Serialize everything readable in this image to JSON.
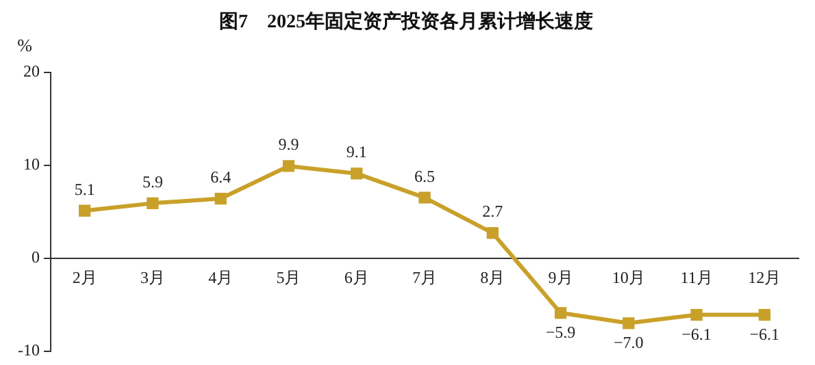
{
  "chart_data": {
    "type": "line",
    "title": "图7　2025年固定资产投资各月累计增长速度",
    "ylabel": "%",
    "categories": [
      "2月",
      "3月",
      "4月",
      "5月",
      "6月",
      "7月",
      "8月",
      "9月",
      "10月",
      "11月",
      "12月"
    ],
    "series": [
      {
        "color": "#c9a12a",
        "values": [
          5.1,
          5.9,
          6.4,
          9.9,
          9.1,
          6.5,
          2.7,
          -5.9,
          -7.0,
          -6.1,
          -6.1
        ],
        "value_labels": [
          "5.1",
          "5.9",
          "6.4",
          "9.9",
          "9.1",
          "6.5",
          "2.7",
          "−5.9",
          "−7.0",
          "−6.1",
          "−6.1"
        ]
      }
    ],
    "ylim": [
      -10,
      20
    ],
    "yticks": [
      -10,
      0,
      10,
      20
    ],
    "grid": false,
    "legend": false,
    "marker": "square",
    "line_style": "solid"
  }
}
